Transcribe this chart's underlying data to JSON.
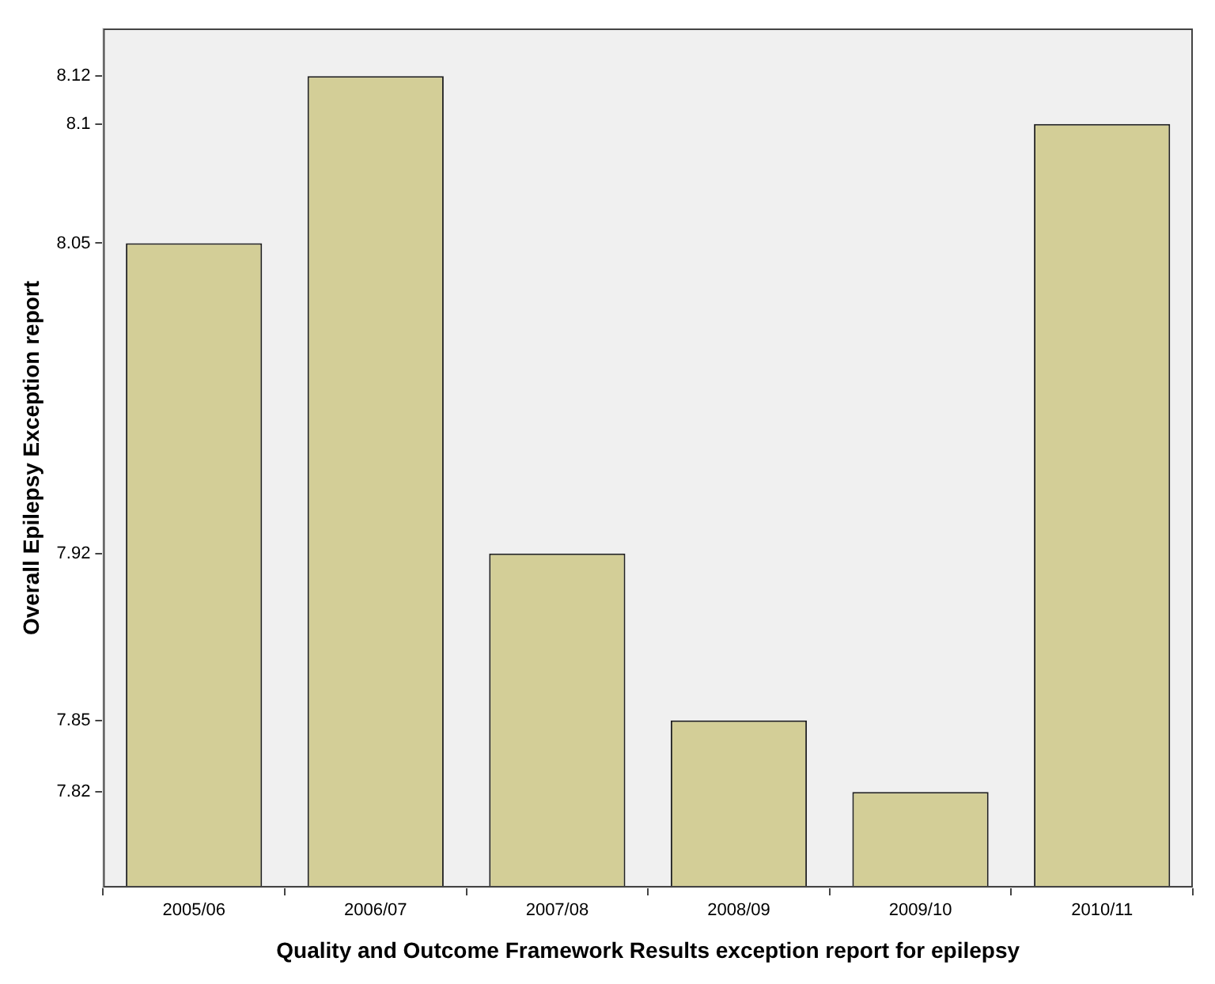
{
  "chart_data": {
    "type": "bar",
    "xlabel": "Quality and Outcome Framework Results exception report for epilepsy",
    "ylabel": "Overall Epilepsy Exception report",
    "categories": [
      "2005/06",
      "2006/07",
      "2007/08",
      "2008/09",
      "2009/10",
      "2010/11"
    ],
    "values": [
      8.05,
      8.12,
      7.92,
      7.85,
      7.82,
      8.1
    ],
    "color": "#d3ce97",
    "ylim": [
      7.78,
      8.14
    ],
    "yticks": [
      7.82,
      7.85,
      7.92,
      8.05,
      8.1,
      8.12
    ],
    "grid": false,
    "legend": false
  }
}
